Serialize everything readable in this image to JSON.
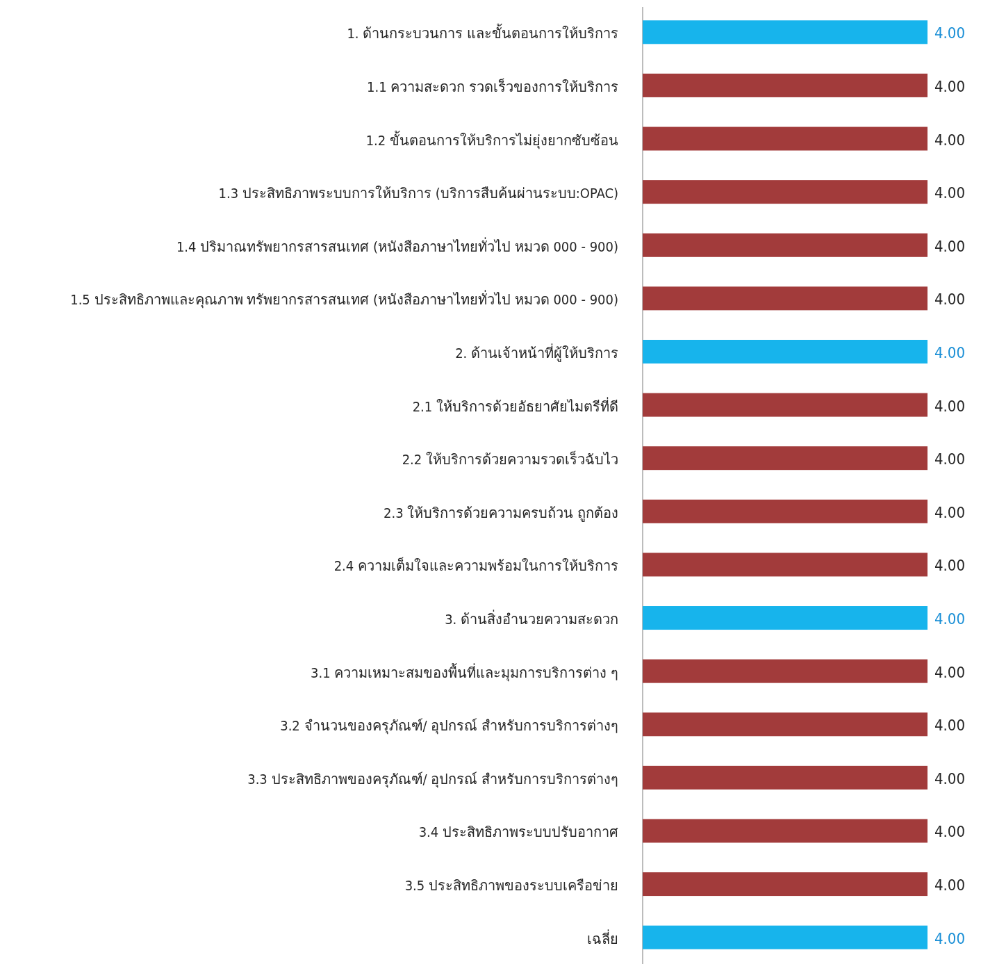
{
  "chart_data": {
    "type": "bar",
    "orientation": "horizontal",
    "categories": [
      "1. ด้านกระบวนการ และขั้นตอนการให้บริการ",
      "1.1 ความสะดวก รวดเร็วของการให้บริการ",
      "1.2 ขั้นตอนการให้บริการไม่ยุ่งยากซับซ้อน",
      "1.3 ประสิทธิภาพระบบการให้บริการ (บริการสืบค้นผ่านระบบ:OPAC)",
      "1.4 ปริมาณทรัพยากรสารสนเทศ (หนังสือภาษาไทยทั่วไป หมวด 000 - 900)",
      "1.5 ประสิทธิภาพและคุณภาพ ทรัพยากรสารสนเทศ (หนังสือภาษาไทยทั่วไป หมวด 000 - 900)",
      "2. ด้านเจ้าหน้าที่ผู้ให้บริการ",
      "2.1 ให้บริการด้วยอัธยาศัยไมตรีที่ดี",
      "2.2 ให้บริการด้วยความรวดเร็วฉับไว",
      "2.3 ให้บริการด้วยความครบถ้วน ถูกต้อง",
      "2.4 ความเต็มใจและความพร้อมในการให้บริการ",
      "3. ด้านสิ่งอำนวยความสะดวก",
      "3.1 ความเหมาะสมของพื้นที่และมุมการบริการต่าง ๆ",
      "3.2 จำนวนของครุภัณฑ์/ อุปกรณ์ สำหรับการบริการต่างๆ",
      "3.3 ประสิทธิภาพของครุภัณฑ์/ อุปกรณ์ สำหรับการบริการต่างๆ",
      "3.4 ประสิทธิภาพระบบปรับอากาศ",
      "3.5 ประสิทธิภาพของระบบเครือข่าย",
      "เฉลี่ย"
    ],
    "values": [
      4,
      4,
      4,
      4,
      4,
      4,
      4,
      4,
      4,
      4,
      4,
      4,
      4,
      4,
      4,
      4,
      4,
      4
    ],
    "value_labels": [
      "4.00",
      "4.00",
      "4.00",
      "4.00",
      "4.00",
      "4.00",
      "4.00",
      "4.00",
      "4.00",
      "4.00",
      "4.00",
      "4.00",
      "4.00",
      "4.00",
      "4.00",
      "4.00",
      "4.00",
      "4.00"
    ],
    "colors": [
      "#17b4ec",
      "#a23b3b",
      "#a23b3b",
      "#a23b3b",
      "#a23b3b",
      "#a23b3b",
      "#17b4ec",
      "#a23b3b",
      "#a23b3b",
      "#a23b3b",
      "#a23b3b",
      "#17b4ec",
      "#a23b3b",
      "#a23b3b",
      "#a23b3b",
      "#a23b3b",
      "#a23b3b",
      "#17b4ec"
    ]
  }
}
